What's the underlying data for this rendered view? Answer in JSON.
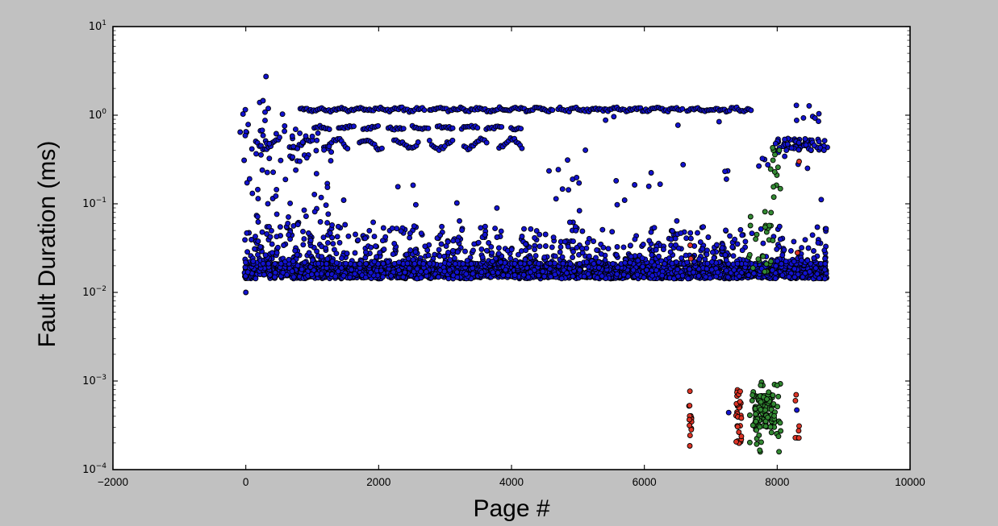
{
  "figure": {
    "background_color": "#c1c1c1",
    "plot_background_color": "#ffffff",
    "spine_color": "#000000"
  },
  "chart_data": {
    "type": "scatter",
    "title": "",
    "xlabel": "Page #",
    "ylabel": "Fault Duration (ms)",
    "xscale": "linear",
    "yscale": "log",
    "xlim": [
      -2000,
      10000
    ],
    "ylim_exp": [
      -4,
      1
    ],
    "grid": false,
    "legend": null,
    "x_ticks": [
      -2000,
      0,
      2000,
      4000,
      6000,
      8000,
      10000
    ],
    "x_tick_labels": [
      "−2000",
      "0",
      "2000",
      "4000",
      "6000",
      "8000",
      "10000"
    ],
    "y_ticks": [
      {
        "exp": 1,
        "base": "10",
        "sup": "1"
      },
      {
        "exp": 0,
        "base": "10",
        "sup": "0"
      },
      {
        "exp": -1,
        "base": "10",
        "sup": "−1"
      },
      {
        "exp": -2,
        "base": "10",
        "sup": "−2"
      },
      {
        "exp": -3,
        "base": "10",
        "sup": "−3"
      },
      {
        "exp": -4,
        "base": "10",
        "sup": "−4"
      }
    ],
    "colors": {
      "blue": "#1212d0",
      "green": "#338a33",
      "red": "#dd3426",
      "edge": "#000000"
    },
    "marker": {
      "radius": 3.0,
      "stroke_width": 0.9
    },
    "clusters": [
      {
        "name": "dense-band-core",
        "kind": "blob",
        "color": "blue",
        "seed": 11,
        "x": [
          -20,
          8750
        ],
        "v": [
          0.0143,
          0.021
        ],
        "count": 2400,
        "bias": 1.0
      },
      {
        "name": "dense-band-upper",
        "kind": "blob",
        "color": "blue",
        "seed": 12,
        "x": [
          -20,
          8750
        ],
        "v": [
          0.021,
          0.055
        ],
        "count": 820,
        "bias": 2.1,
        "gap": [
          7560,
          7920,
          0.75
        ]
      },
      {
        "name": "band-outliers",
        "kind": "blob",
        "color": "blue",
        "seed": 13,
        "x": [
          0,
          8700
        ],
        "v": [
          0.055,
          0.21
        ],
        "count": 38,
        "bias": 2.4
      },
      {
        "name": "top-line",
        "kind": "trace",
        "color": "blue",
        "seed": 14,
        "x": [
          820,
          7630
        ],
        "step": 27,
        "v": 1.16,
        "amp": 0.012,
        "period": 11,
        "phase": 1.2,
        "noise": 0.016,
        "dash": [
          70,
          2
        ]
      },
      {
        "name": "mid-line",
        "kind": "trace",
        "color": "blue",
        "seed": 15,
        "x": [
          1030,
          4160
        ],
        "step": 29,
        "v": 0.72,
        "amp": 0.012,
        "period": 16,
        "phase": 0.5,
        "noise": 0.013,
        "dash": [
          9,
          4
        ]
      },
      {
        "name": "wavy-line",
        "kind": "trace",
        "color": "blue",
        "seed": 16,
        "x": [
          150,
          4160
        ],
        "step": 29,
        "v": 0.47,
        "amp": 0.052,
        "period": 15,
        "phase": 2.6,
        "noise": 0.02,
        "dash": [
          13,
          5
        ]
      },
      {
        "name": "left-scatter-mid",
        "kind": "blob",
        "color": "blue",
        "seed": 17,
        "x": [
          -120,
          1360
        ],
        "v": [
          0.29,
          0.82
        ],
        "count": 46,
        "bias": 1.0
      },
      {
        "name": "left-scatter-low",
        "kind": "blob",
        "color": "blue",
        "seed": 18,
        "x": [
          -100,
          1310
        ],
        "v": [
          0.05,
          0.29
        ],
        "count": 30,
        "bias": 1.0
      },
      {
        "name": "left-scatter-high",
        "kind": "blob",
        "color": "blue",
        "seed": 19,
        "x": [
          -80,
          560
        ],
        "v": [
          0.82,
          1.65
        ],
        "count": 8,
        "bias": 1.0
      },
      {
        "name": "mid-sparse",
        "kind": "blob",
        "color": "blue",
        "seed": 20,
        "x": [
          4250,
          7350
        ],
        "v": [
          0.12,
          1.05
        ],
        "count": 18,
        "bias": 1.0
      },
      {
        "name": "right-cluster",
        "kind": "blob",
        "color": "blue",
        "seed": 21,
        "x": [
          7930,
          8780
        ],
        "v": [
          0.4,
          0.55
        ],
        "count": 58,
        "bias": 1.0
      },
      {
        "name": "right-cluster-low",
        "kind": "blob",
        "color": "blue",
        "seed": 22,
        "x": [
          7600,
          8750
        ],
        "v": [
          0.25,
          0.4
        ],
        "count": 8,
        "bias": 1.0
      },
      {
        "name": "right-high",
        "kind": "blob",
        "color": "blue",
        "seed": 23,
        "x": [
          8250,
          8700
        ],
        "v": [
          0.85,
          1.3
        ],
        "count": 8,
        "bias": 1.0
      },
      {
        "name": "blue-singles",
        "kind": "points",
        "color": "blue",
        "pts": [
          [
            0,
            0.01
          ],
          [
            304,
            2.73
          ],
          [
            7270,
            0.00044
          ],
          [
            8295,
            0.00047
          ]
        ]
      },
      {
        "name": "green-band-scatter",
        "kind": "blob",
        "color": "green",
        "seed": 31,
        "x": [
          7570,
          7950
        ],
        "v": [
          0.017,
          0.085
        ],
        "count": 26,
        "bias": 1.6
      },
      {
        "name": "green-upper-cluster",
        "kind": "blob",
        "color": "green",
        "seed": 32,
        "x": [
          7900,
          8070
        ],
        "v": [
          0.1,
          0.5
        ],
        "count": 13,
        "bias": 1.0
      },
      {
        "name": "green-bottom-core",
        "kind": "blob",
        "color": "green",
        "seed": 33,
        "x": [
          7650,
          7960
        ],
        "v": [
          0.0003,
          0.0007
        ],
        "count": 92,
        "bias": 1.0
      },
      {
        "name": "green-bottom-halo",
        "kind": "blob",
        "color": "green",
        "seed": 34,
        "x": [
          7580,
          8060
        ],
        "v": [
          0.000155,
          0.00105
        ],
        "count": 46,
        "bias": 1.0
      },
      {
        "name": "red-column-1",
        "kind": "blob",
        "color": "red",
        "seed": 41,
        "x": [
          6670,
          6715
        ],
        "v": [
          0.000175,
          0.00082
        ],
        "count": 14,
        "bias": 1.0
      },
      {
        "name": "red-column-2",
        "kind": "blob",
        "color": "red",
        "seed": 42,
        "x": [
          7380,
          7465
        ],
        "v": [
          0.00019,
          0.00096
        ],
        "count": 30,
        "bias": 1.0
      },
      {
        "name": "red-column-3",
        "kind": "blob",
        "color": "red",
        "seed": 43,
        "x": [
          8270,
          8330
        ],
        "v": [
          0.00021,
          0.00086
        ],
        "count": 7,
        "bias": 1.0
      },
      {
        "name": "red-singles",
        "kind": "points",
        "color": "red",
        "pts": [
          [
            6690,
            0.034
          ],
          [
            6700,
            0.024
          ],
          [
            8305,
            0.028
          ],
          [
            8330,
            0.3
          ]
        ]
      }
    ]
  }
}
